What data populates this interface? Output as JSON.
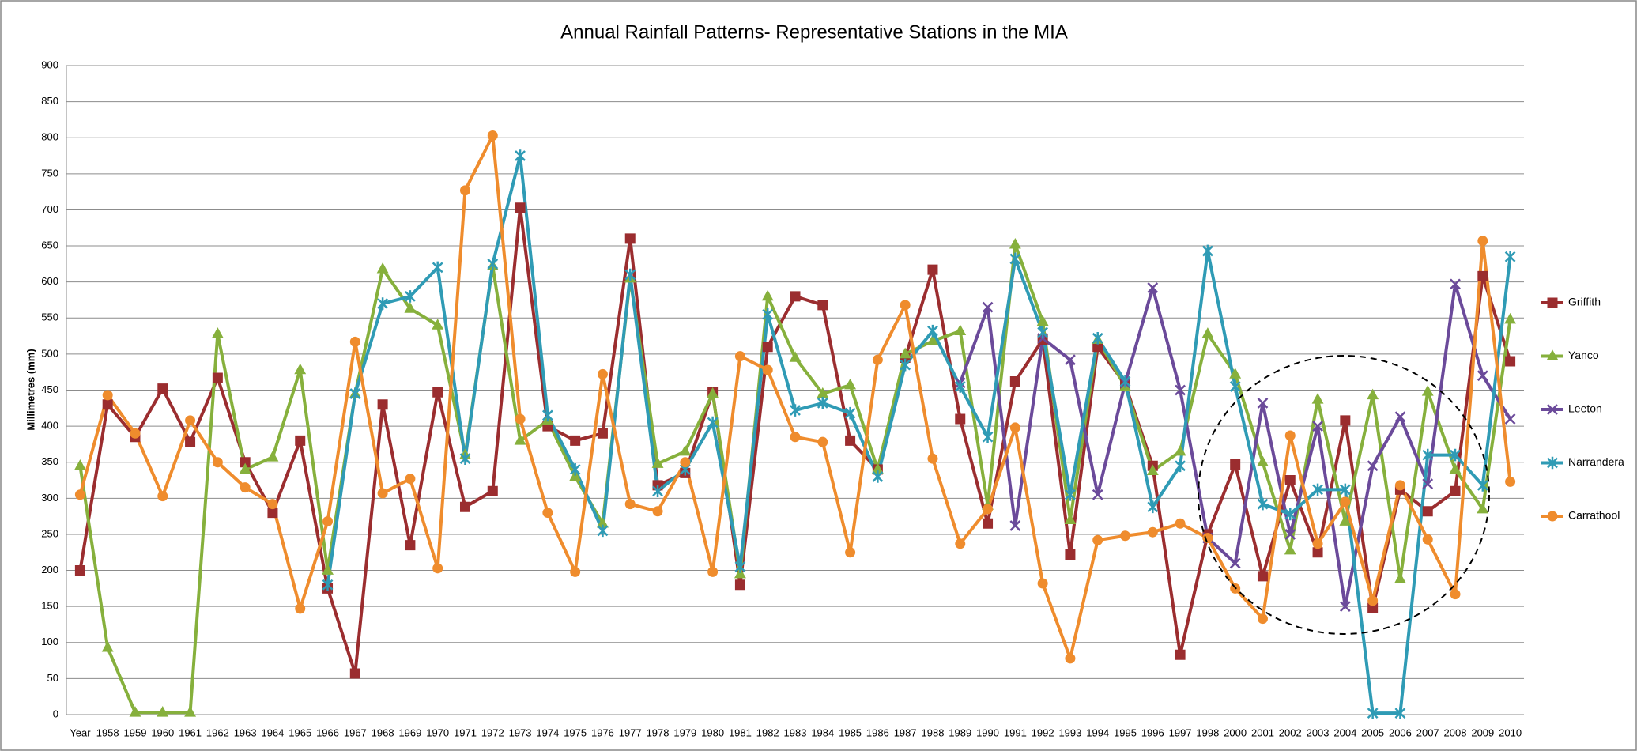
{
  "chart_data": {
    "type": "line",
    "title": "Annual Rainfall Patterns- Representative Stations in the MIA",
    "y_label": "Millimetres (mm)",
    "categories": [
      "Year",
      "1958",
      "1959",
      "1960",
      "1961",
      "1962",
      "1963",
      "1964",
      "1965",
      "1966",
      "1967",
      "1968",
      "1969",
      "1970",
      "1971",
      "1972",
      "1973",
      "1974",
      "1975",
      "1976",
      "1977",
      "1978",
      "1979",
      "1980",
      "1981",
      "1982",
      "1983",
      "1984",
      "1985",
      "1986",
      "1987",
      "1988",
      "1989",
      "1990",
      "1991",
      "1992",
      "1993",
      "1994",
      "1995",
      "1996",
      "1997",
      "1998",
      "2000",
      "2001",
      "2002",
      "2003",
      "2004",
      "2005",
      "2006",
      "2007",
      "2008",
      "2009",
      "2010"
    ],
    "ylim": [
      0,
      900
    ],
    "yticks": [
      0,
      50,
      100,
      150,
      200,
      250,
      300,
      350,
      400,
      450,
      500,
      550,
      600,
      650,
      700,
      750,
      800,
      850,
      900
    ],
    "grid": true,
    "legend": "right",
    "series": [
      {
        "name": "Griffith",
        "color": "#9b2d2f",
        "marker": "square",
        "values": [
          200,
          430,
          385,
          452,
          378,
          467,
          350,
          280,
          380,
          175,
          57,
          430,
          235,
          447,
          288,
          310,
          703,
          400,
          380,
          390,
          660,
          318,
          335,
          447,
          180,
          510,
          580,
          568,
          380,
          340,
          495,
          617,
          410,
          265,
          462,
          520,
          222,
          510,
          458,
          345,
          83,
          250,
          347,
          192,
          325,
          225,
          408,
          148,
          312,
          282,
          310,
          608,
          490
        ]
      },
      {
        "name": "Yanco",
        "color": "#86b03c",
        "marker": "triangle",
        "values": [
          345,
          93,
          3,
          3,
          3,
          528,
          340,
          357,
          478,
          200,
          445,
          618,
          563,
          540,
          360,
          622,
          380,
          408,
          330,
          265,
          605,
          348,
          365,
          445,
          195,
          580,
          495,
          445,
          457,
          340,
          500,
          518,
          532,
          290,
          652,
          545,
          270,
          520,
          455,
          338,
          365,
          528,
          472,
          350,
          228,
          437,
          268,
          443,
          188,
          448,
          340,
          285,
          548
        ]
      },
      {
        "name": "Leeton",
        "color": "#6b4a9a",
        "marker": "cross",
        "values": [
          null,
          null,
          null,
          null,
          null,
          null,
          null,
          null,
          null,
          null,
          null,
          null,
          null,
          null,
          null,
          null,
          null,
          null,
          null,
          null,
          null,
          null,
          null,
          null,
          null,
          null,
          null,
          null,
          null,
          null,
          null,
          null,
          460,
          565,
          262,
          522,
          492,
          305,
          460,
          592,
          450,
          245,
          210,
          432,
          250,
          400,
          150,
          345,
          413,
          320,
          597,
          470,
          410
        ]
      },
      {
        "name": "Narrandera",
        "color": "#2f9bb5",
        "marker": "star",
        "values": [
          null,
          null,
          null,
          null,
          null,
          null,
          null,
          null,
          null,
          180,
          445,
          570,
          580,
          620,
          355,
          625,
          775,
          415,
          340,
          255,
          610,
          310,
          340,
          405,
          205,
          555,
          422,
          432,
          418,
          330,
          485,
          532,
          455,
          385,
          632,
          530,
          305,
          522,
          462,
          288,
          345,
          643,
          455,
          292,
          278,
          312,
          312,
          2,
          2,
          360,
          360,
          318,
          635
        ]
      },
      {
        "name": "Carrathool",
        "color": "#ef8c2d",
        "marker": "circle",
        "values": [
          305,
          443,
          390,
          303,
          408,
          350,
          315,
          292,
          147,
          268,
          517,
          307,
          327,
          203,
          727,
          803,
          410,
          280,
          198,
          472,
          292,
          282,
          350,
          198,
          497,
          478,
          385,
          378,
          225,
          492,
          568,
          355,
          237,
          285,
          398,
          182,
          78,
          242,
          248,
          253,
          265,
          245,
          175,
          133,
          387,
          237,
          295,
          158,
          318,
          243,
          167,
          657,
          323
        ]
      }
    ]
  }
}
